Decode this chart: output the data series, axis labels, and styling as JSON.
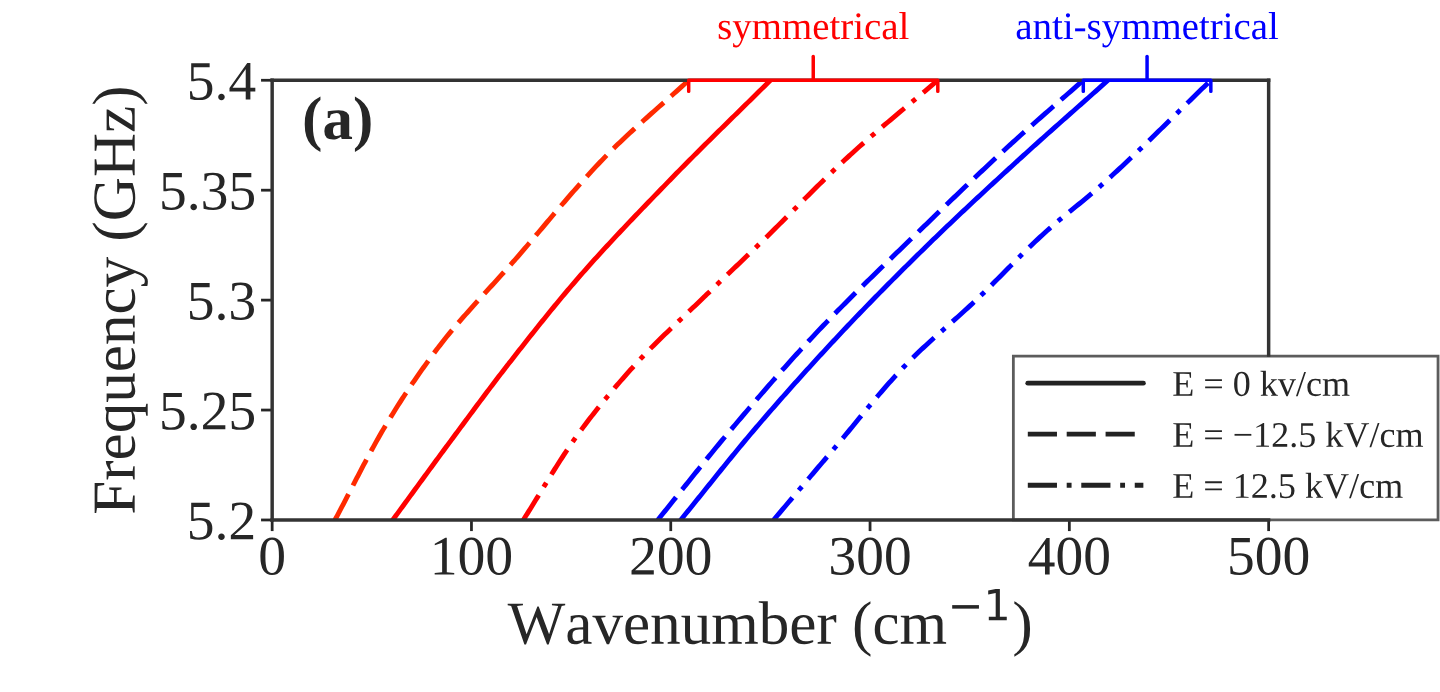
{
  "chart_data": {
    "type": "line",
    "xlabel": "Wavenumber (cm$^{−1}$)",
    "ylabel": "Frequency (GHz)",
    "xlim": [
      0,
      500
    ],
    "xticks": [
      0,
      100,
      200,
      300,
      400,
      500
    ],
    "ylim": [
      5.2,
      5.4
    ],
    "yticks": [
      5.2,
      5.25,
      5.3,
      5.35,
      5.4
    ],
    "grid": false,
    "legend": "bottom right",
    "annotations": [
      "(a)",
      "symmetrical",
      "anti-symmetrical"
    ],
    "series": [
      {
        "name": "E = 0 kv/cm",
        "color": "#ff0000",
        "line_style": "solid",
        "x": [
          60.5,
          89.6,
          118.6,
          153.5,
          200,
          250
        ],
        "values": [
          5.2,
          5.236,
          5.271,
          5.31,
          5.355,
          5.4
        ]
      },
      {
        "name": "E = −12.5 kV/cm",
        "color": "#ff2a00",
        "line_style": "dashed",
        "x": [
          31.5,
          57.6,
          83.8,
          121.5,
          168,
          209
        ],
        "values": [
          5.2,
          5.244,
          5.279,
          5.318,
          5.366,
          5.4
        ]
      },
      {
        "name": "E = 12.5 kV/cm",
        "color": "#ff0000",
        "line_style": "dashdot",
        "x": [
          126,
          153.5,
          182.5,
          217.4,
          245,
          290,
          334
        ],
        "values": [
          5.2,
          5.239,
          5.271,
          5.302,
          5.326,
          5.366,
          5.4
        ]
      },
      {
        "color": "#0000ff",
        "line_style": "solid",
        "x": [
          205,
          242.8,
          286.4,
          330,
          373.6,
          419.4
        ],
        "values": [
          5.2,
          5.242,
          5.286,
          5.326,
          5.363,
          5.4
        ]
      },
      {
        "color": "#0000ff",
        "line_style": "dashed",
        "x": [
          193.5,
          228.3,
          271.9,
          324.2,
          370.7,
          407
        ],
        "values": [
          5.2,
          5.239,
          5.284,
          5.331,
          5.371,
          5.4
        ]
      },
      {
        "color": "#0000ff",
        "line_style": "dashdot",
        "x": [
          251.6,
          280.6,
          318.4,
          353.2,
          388.1,
          415.7,
          471
        ],
        "values": [
          5.2,
          5.231,
          5.271,
          5.3,
          5.331,
          5.352,
          5.4
        ]
      }
    ]
  }
}
